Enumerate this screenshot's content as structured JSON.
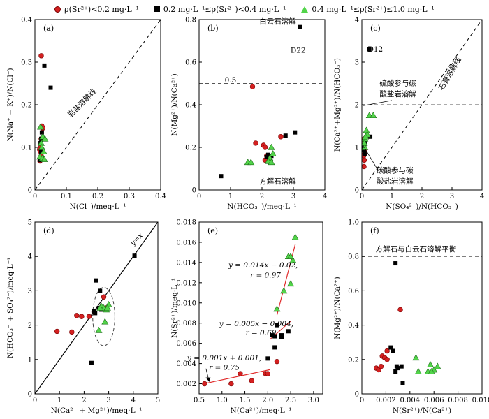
{
  "legend": {
    "items": [
      {
        "label": "ρ(Sr²⁺)<0.2 mg·L⁻¹",
        "marker": "circle"
      },
      {
        "label": "0.2 mg·L⁻¹≤ρ(Sr²⁺)<0.4 mg·L⁻¹",
        "marker": "square"
      },
      {
        "label": "0.4 mg·L⁻¹≤ρ(Sr²⁺)≤1.0 mg·L⁻¹",
        "marker": "triangle"
      }
    ]
  },
  "colors": {
    "circle": "#d42020",
    "circle_edge": "#7a0000",
    "square": "#000000",
    "triangle": "#52d44a",
    "triangle_edge": "#1f6e1a",
    "fit_line": "#e02a2a"
  },
  "chart_data": [
    {
      "type": "scatter",
      "panel_label": "(a)",
      "xlabel": "N(Cl⁻)/meq·L⁻¹",
      "ylabel": "N(Na⁺ + K⁺)/N(Cl⁻)",
      "xlim": [
        0,
        0.4
      ],
      "ylim": [
        0,
        0.4
      ],
      "xticks": [
        "0",
        "0.1",
        "0.2",
        "0.3",
        "0.4"
      ],
      "yticks": [
        "0",
        "0.1",
        "0.2",
        "0.3",
        "0.4"
      ],
      "lines": [
        {
          "style": "dashed",
          "color": "#000000",
          "x": [
            0,
            0.4
          ],
          "y": [
            0,
            0.4
          ]
        }
      ],
      "annotations": [
        {
          "text": "岩盐溶解线",
          "x": 0.155,
          "y": 0.2,
          "rotate": -45
        }
      ],
      "series": [
        {
          "marker": "circle",
          "x": [
            0.02,
            0.022,
            0.025,
            0.02,
            0.018,
            0.015,
            0.018,
            0.02,
            0.022,
            0.016
          ],
          "y": [
            0.315,
            0.15,
            0.145,
            0.12,
            0.1,
            0.095,
            0.09,
            0.08,
            0.072,
            0.068
          ]
        },
        {
          "marker": "square",
          "x": [
            0.03,
            0.05,
            0.022,
            0.02,
            0.018,
            0.02,
            0.022,
            0.016
          ],
          "y": [
            0.292,
            0.24,
            0.135,
            0.12,
            0.11,
            0.09,
            0.075,
            0.07
          ]
        },
        {
          "marker": "triangle",
          "x": [
            0.018,
            0.025,
            0.032,
            0.02,
            0.022,
            0.028,
            0.016,
            0.024,
            0.03
          ],
          "y": [
            0.148,
            0.125,
            0.12,
            0.11,
            0.1,
            0.09,
            0.078,
            0.075,
            0.072
          ]
        }
      ]
    },
    {
      "type": "scatter",
      "panel_label": "(b)",
      "xlabel": "N(HCO₃⁻)/meq·L⁻¹",
      "ylabel": "N(Mg²⁺)/N(Ca²⁺)",
      "xlim": [
        0,
        4
      ],
      "ylim": [
        0,
        0.8
      ],
      "xticks": [
        "0",
        "1",
        "2",
        "3",
        "4"
      ],
      "yticks": [
        "0",
        "0.2",
        "0.4",
        "0.6",
        "0.8"
      ],
      "lines": [
        {
          "style": "dashed",
          "color": "#555555",
          "x": [
            0,
            4
          ],
          "y": [
            0.5,
            0.5
          ]
        }
      ],
      "annotations": [
        {
          "text": "白云石溶解",
          "x": 2.5,
          "y": 0.78,
          "rotate": 0
        },
        {
          "text": "方解石溶解",
          "x": 2.5,
          "y": 0.03,
          "rotate": 0
        },
        {
          "text": "0.5",
          "x": 1.0,
          "y": 0.505,
          "rotate": 0
        },
        {
          "text": "D22",
          "x": 3.15,
          "y": 0.645,
          "rotate": 0
        }
      ],
      "series": [
        {
          "marker": "circle",
          "x": [
            1.7,
            1.8,
            2.05,
            2.1,
            2.15,
            2.2,
            2.1,
            2.6
          ],
          "y": [
            0.485,
            0.22,
            0.21,
            0.2,
            0.16,
            0.15,
            0.14,
            0.25
          ]
        },
        {
          "marker": "square",
          "x": [
            3.2,
            3.05,
            2.75,
            0.7,
            2.2,
            2.3,
            2.25,
            2.15
          ],
          "y": [
            0.765,
            0.27,
            0.255,
            0.065,
            0.165,
            0.16,
            0.14,
            0.155
          ]
        },
        {
          "marker": "triangle",
          "x": [
            1.55,
            1.65,
            2.3,
            2.35,
            2.25,
            2.2,
            2.3
          ],
          "y": [
            0.13,
            0.13,
            0.2,
            0.17,
            0.15,
            0.135,
            0.13
          ]
        }
      ]
    },
    {
      "type": "scatter",
      "panel_label": "(c)",
      "xlabel": "N(SO₄²⁻)/N(HCO₃⁻)",
      "ylabel": "N(Ca²⁺+Mg²⁺)/N(HCO₃⁻)",
      "xlim": [
        0,
        4
      ],
      "ylim": [
        0,
        4
      ],
      "xticks": [
        "0",
        "1",
        "2",
        "3",
        "4"
      ],
      "yticks": [
        "0",
        "1",
        "2",
        "3",
        "4"
      ],
      "lines": [
        {
          "style": "dashed",
          "color": "#555555",
          "x": [
            0,
            4
          ],
          "y": [
            2,
            2
          ]
        },
        {
          "style": "dashed",
          "color": "#000000",
          "x": [
            0,
            4
          ],
          "y": [
            0,
            4
          ]
        }
      ],
      "annotations": [
        {
          "text": "D12",
          "x": 0.45,
          "y": 3.25,
          "rotate": 0
        },
        {
          "text": "硫酸参与碳",
          "x": 1.2,
          "y": 2.45,
          "rotate": 0
        },
        {
          "text": "酸盐岩溶解",
          "x": 1.2,
          "y": 2.2,
          "rotate": 0
        },
        {
          "text": "石膏溶解线",
          "x": 3.0,
          "y": 2.7,
          "rotate": -60
        },
        {
          "text": "碳酸参与碳",
          "x": 1.1,
          "y": 0.4,
          "rotate": 0
        },
        {
          "text": "酸盐岩溶解",
          "x": 1.1,
          "y": 0.15,
          "rotate": 0
        }
      ],
      "series": [
        {
          "marker": "circle",
          "x": [
            0.08,
            0.07,
            0.1,
            0.09,
            0.06,
            0.08,
            0.07,
            0.08
          ],
          "y": [
            1.2,
            1.05,
            0.95,
            0.85,
            0.8,
            0.7,
            0.55,
            1.15
          ]
        },
        {
          "marker": "square",
          "x": [
            0.25,
            0.28,
            0.1,
            0.08,
            0.07,
            0.09
          ],
          "y": [
            3.3,
            1.25,
            1.1,
            1.0,
            0.95,
            0.85
          ]
        },
        {
          "marker": "triangle",
          "x": [
            0.25,
            0.38,
            0.15,
            0.18,
            0.1,
            0.08,
            0.12,
            0.1
          ],
          "y": [
            1.75,
            1.75,
            1.4,
            1.3,
            1.2,
            1.1,
            1.25,
            1.0
          ]
        }
      ]
    },
    {
      "type": "scatter",
      "panel_label": "(d)",
      "xlabel": "N(Ca²⁺ + Mg²⁺)/meq·L⁻¹",
      "ylabel": "N(HCO₃⁻ + SO₄²⁻)/meq·L⁻¹",
      "xlim": [
        0,
        5
      ],
      "ylim": [
        0,
        5
      ],
      "xticks": [
        "0",
        "1",
        "2",
        "3",
        "4",
        "5"
      ],
      "yticks": [
        "0",
        "1",
        "2",
        "3",
        "4",
        "5"
      ],
      "lines": [
        {
          "style": "solid",
          "color": "#000000",
          "x": [
            0,
            5
          ],
          "y": [
            0,
            5
          ]
        }
      ],
      "annotations": [
        {
          "text": "y=x",
          "x": 4.2,
          "y": 4.45,
          "rotate": -45
        }
      ],
      "ellipse": {
        "cx": 2.8,
        "cy": 2.25,
        "rx": 0.45,
        "ry": 0.85
      },
      "series": [
        {
          "marker": "circle",
          "x": [
            0.9,
            1.5,
            1.7,
            1.9,
            2.2,
            2.4,
            2.8,
            2.9
          ],
          "y": [
            1.82,
            1.8,
            2.28,
            2.25,
            2.25,
            2.38,
            2.82,
            2.5
          ]
        },
        {
          "marker": "square",
          "x": [
            4.05,
            2.5,
            2.65,
            2.4,
            2.45,
            2.3,
            2.6,
            2.7
          ],
          "y": [
            4.02,
            3.3,
            3.0,
            2.4,
            2.35,
            0.9,
            2.5,
            2.45
          ]
        },
        {
          "marker": "triangle",
          "x": [
            2.7,
            2.8,
            2.9,
            3.0,
            2.65,
            2.85,
            2.95,
            2.6
          ],
          "y": [
            2.55,
            2.5,
            2.45,
            2.6,
            2.5,
            2.1,
            2.5,
            1.85
          ]
        }
      ]
    },
    {
      "type": "scatter",
      "panel_label": "(e)",
      "xlabel": "N(Ca²⁺)/meq·L⁻¹",
      "ylabel": "N(Sr²⁺)/meq·L⁻¹",
      "xlim": [
        0.5,
        3.2
      ],
      "ylim": [
        0.001,
        0.018
      ],
      "xticks": [
        "0.5",
        "1.0",
        "1.5",
        "2.0",
        "2.5",
        "3.0"
      ],
      "yticks": [
        "0.002",
        "0.004",
        "0.006",
        "0.008",
        "0.010",
        "0.012",
        "0.014",
        "0.016",
        "0.018"
      ],
      "lines": [
        {
          "style": "solid",
          "color": "#e02a2a",
          "x": [
            0.6,
            2.05
          ],
          "y": [
            0.002,
            0.0034
          ]
        },
        {
          "style": "solid",
          "color": "#e02a2a",
          "x": [
            2.05,
            2.5
          ],
          "y": [
            0.0064,
            0.0082
          ]
        },
        {
          "style": "solid",
          "color": "#e02a2a",
          "x": [
            2.2,
            2.6
          ],
          "y": [
            0.0088,
            0.0158
          ]
        }
      ],
      "annotations": [
        {
          "text": "y = 0.014x − 0.02,",
          "x": 1.9,
          "y": 0.0135,
          "rotate": 0
        },
        {
          "text": "r = 0.97",
          "x": 1.95,
          "y": 0.0125,
          "rotate": 0
        },
        {
          "text": "y = 0.005x − 0.004,",
          "x": 1.75,
          "y": 0.0077,
          "rotate": 0
        },
        {
          "text": "r = 0.69",
          "x": 1.85,
          "y": 0.0068,
          "rotate": 0
        },
        {
          "text": "y = 0.001x + 0.001,",
          "x": 1.05,
          "y": 0.0043,
          "rotate": 0
        },
        {
          "text": "r = 0.75",
          "x": 1.05,
          "y": 0.0034,
          "rotate": 0
        }
      ],
      "series": [
        {
          "marker": "circle",
          "x": [
            0.62,
            1.2,
            1.4,
            1.65,
            1.95,
            2.0,
            2.2
          ],
          "y": [
            0.002,
            0.002,
            0.003,
            0.0023,
            0.003,
            0.003,
            0.0042
          ]
        },
        {
          "marker": "square",
          "x": [
            2.2,
            2.1,
            2.15,
            2.3,
            2.45,
            2.3,
            2.0,
            2.15
          ],
          "y": [
            0.0078,
            0.0068,
            0.0067,
            0.0066,
            0.0072,
            0.0068,
            0.0045,
            0.0056
          ]
        },
        {
          "marker": "triangle",
          "x": [
            2.2,
            2.35,
            2.5,
            2.55,
            2.45,
            2.5,
            2.6
          ],
          "y": [
            0.0094,
            0.0112,
            0.0119,
            0.0142,
            0.0146,
            0.0146,
            0.0165
          ]
        }
      ]
    },
    {
      "type": "scatter",
      "panel_label": "(f)",
      "xlabel": "N(Sr²⁺)/N(Ca²⁺)",
      "ylabel": "N(Mg²⁺)/N(Ca²⁺)",
      "xlim": [
        0,
        0.01
      ],
      "ylim": [
        0,
        1.0
      ],
      "xticks": [
        "0",
        "0.002",
        "0.004",
        "0.006",
        "0.008",
        "0.010"
      ],
      "yticks": [
        "0",
        "0.2",
        "0.4",
        "0.6",
        "0.8",
        "1.0"
      ],
      "lines": [
        {
          "style": "dashed",
          "color": "#555555",
          "x": [
            0,
            0.01
          ],
          "y": [
            0.8,
            0.8
          ]
        }
      ],
      "annotations": [
        {
          "text": "方解石与白云石溶解平衡",
          "x": 0.0045,
          "y": 0.83,
          "rotate": 0
        }
      ],
      "series": [
        {
          "marker": "circle",
          "x": [
            0.0032,
            0.0021,
            0.0017,
            0.0019,
            0.0021,
            0.0012,
            0.0014,
            0.0016
          ],
          "y": [
            0.49,
            0.25,
            0.22,
            0.21,
            0.2,
            0.15,
            0.14,
            0.16
          ]
        },
        {
          "marker": "square",
          "x": [
            0.0028,
            0.0024,
            0.0026,
            0.0029,
            0.003,
            0.0033,
            0.0028,
            0.0034
          ],
          "y": [
            0.76,
            0.27,
            0.25,
            0.16,
            0.15,
            0.16,
            0.13,
            0.065
          ]
        },
        {
          "marker": "triangle",
          "x": [
            0.0045,
            0.0047,
            0.0055,
            0.0057,
            0.006,
            0.0063,
            0.0058
          ],
          "y": [
            0.21,
            0.13,
            0.13,
            0.17,
            0.14,
            0.16,
            0.13
          ]
        }
      ]
    }
  ]
}
